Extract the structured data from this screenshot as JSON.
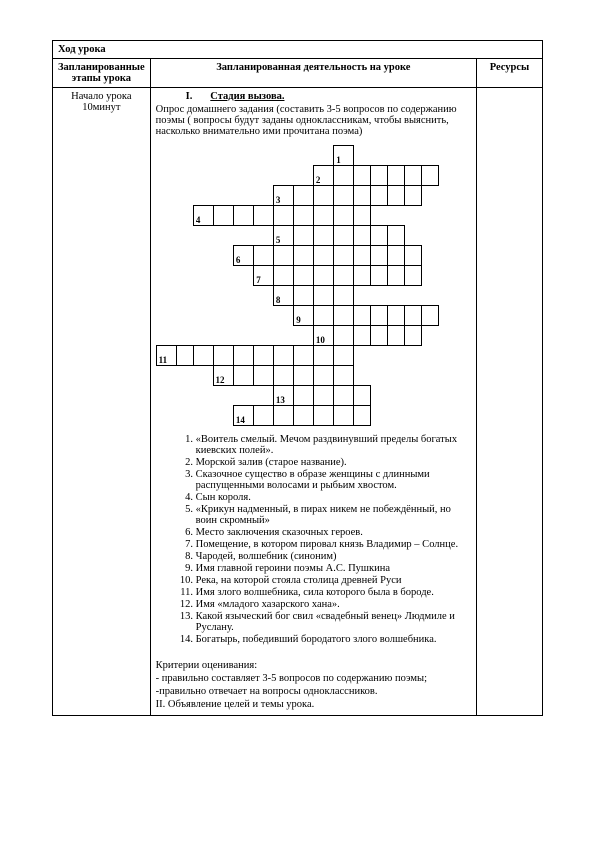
{
  "header": "Ход урока",
  "columns": {
    "stage": "Запланированные этапы урока",
    "activity": "Запланированная деятельность на уроке",
    "resources": "Ресурсы"
  },
  "row1": {
    "stage_line1": "Начало урока",
    "stage_line2": "10минут",
    "section_num": "I.",
    "section_title": "Стадия вызова.",
    "intro": "Опрос домашнего задания (составить 3-5 вопросов по содержанию поэмы ( вопросы будут заданы одноклассникам, чтобы выяснить, насколько внимательно ими прочитана поэма)",
    "clues": [
      "«Воитель смелый. Мечом раздвинувший пределы богатых киевских полей».",
      "Морской залив (старое название).",
      "Сказочное существо в образе женщины с длинными распущенными волосами и рыбьим хвостом.",
      "Сын короля.",
      "«Крикун надменный, в пирах никем не побеждённый, но воин скромный»",
      "Место заключения сказочных героев.",
      "Помещение, в котором пировал князь Владимир – Солнце.",
      "Чародей, волшебник (синоним)",
      "Имя главной героини поэмы А.С. Пушкина",
      "Река, на которой стояла столица древней Руси",
      "Имя злого волшебника, сила которого была в бороде.",
      " Имя «младого хазарского хана».",
      "Какой языческий бог свил «свадебный венец» Людмиле и Руслану.",
      "Богатырь, победивший бородатого злого волшебника."
    ],
    "criteria_title": "Критерии оценивания:",
    "criteria1": "- правильно составляет 3-5 вопросов по содержанию поэмы;",
    "criteria2": "-правильно отвечает на вопросы одноклассников.",
    "closing": "II. Объявление целей и темы урока."
  },
  "crossword": {
    "labels": {
      "1": "1",
      "2": "2",
      "3": "3",
      "4": "4",
      "5": "5",
      "6": "6",
      "7": "7",
      "8": "8",
      "9": "9",
      "10": "10",
      "11": "11",
      "12": "12",
      "13": "13",
      "14": "14"
    }
  }
}
